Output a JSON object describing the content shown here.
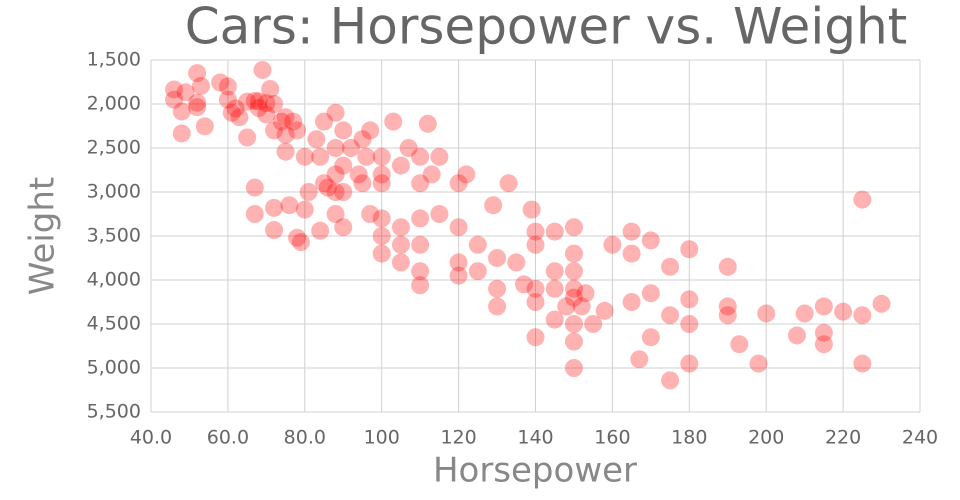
{
  "chart_data": {
    "type": "scatter",
    "title": "Cars: Horsepower vs. Weight",
    "x_label": "Horsepower",
    "y_label": "Weight",
    "color": "#ff0000",
    "opacity": 0.3,
    "grid": true,
    "y_inverted": true,
    "xlim": [
      40,
      240
    ],
    "ylim": [
      1500,
      5500
    ],
    "xticks": [
      {
        "value": 40,
        "label": "40.0"
      },
      {
        "value": 60,
        "label": "60.0"
      },
      {
        "value": 80,
        "label": "80.0"
      },
      100,
      120,
      140,
      160,
      180,
      200,
      220,
      240
    ],
    "yticks": [
      {
        "value": 1500,
        "label": "1,500"
      },
      {
        "value": 2000,
        "label": "2,000"
      },
      {
        "value": 2500,
        "label": "2,500"
      },
      {
        "value": 3000,
        "label": "3,000"
      },
      {
        "value": 3500,
        "label": "3,500"
      },
      {
        "value": 4000,
        "label": "4,000"
      },
      {
        "value": 4500,
        "label": "4,500"
      },
      {
        "value": 5000,
        "label": "5,000"
      },
      {
        "value": 5500,
        "label": "5,500"
      }
    ],
    "x": [
      46,
      46,
      48,
      48,
      49,
      52,
      52,
      52,
      53,
      54,
      58,
      60,
      60,
      61,
      62,
      63,
      65,
      65,
      67,
      67,
      67,
      68,
      68,
      69,
      70,
      70,
      71,
      72,
      72,
      72,
      72,
      74,
      75,
      75,
      75,
      76,
      77,
      78,
      78,
      79,
      80,
      80,
      81,
      83,
      84,
      84,
      85,
      85,
      86,
      88,
      88,
      88,
      88,
      88,
      90,
      90,
      90,
      90,
      92,
      94,
      95,
      95,
      96,
      97,
      97,
      100,
      100,
      100,
      100,
      100,
      100,
      103,
      105,
      105,
      105,
      105,
      107,
      110,
      110,
      110,
      110,
      110,
      110,
      112,
      113,
      115,
      115,
      120,
      120,
      120,
      120,
      122,
      125,
      125,
      129,
      130,
      130,
      130,
      133,
      135,
      137,
      139,
      140,
      140,
      140,
      140,
      140,
      145,
      145,
      145,
      145,
      148,
      150,
      150,
      150,
      150,
      150,
      150,
      150,
      150,
      152,
      153,
      155,
      158,
      160,
      165,
      165,
      165,
      167,
      170,
      170,
      170,
      175,
      175,
      175,
      180,
      180,
      180,
      180,
      190,
      190,
      190,
      193,
      198,
      200,
      208,
      210,
      215,
      215,
      215,
      220,
      225,
      225,
      225,
      230
    ],
    "values": [
      1835,
      1950,
      2335,
      2085,
      1867,
      1649,
      1985,
      2035,
      1795,
      2254,
      1755,
      1800,
      1950,
      2100,
      2050,
      2150,
      1975,
      2380,
      1965,
      2950,
      3250,
      1970,
      2045,
      1613,
      1990,
      2120,
      1830,
      2000,
      2300,
      3180,
      3432,
      2200,
      2350,
      2150,
      2542,
      3150,
      2200,
      2300,
      3520,
      3570,
      2600,
      3200,
      3000,
      2400,
      2600,
      3440,
      2900,
      2200,
      2950,
      2100,
      2500,
      2800,
      3000,
      3250,
      2700,
      3000,
      3400,
      2300,
      2500,
      2800,
      2400,
      2900,
      2600,
      2300,
      3250,
      2600,
      3300,
      3500,
      3700,
      2800,
      2900,
      2200,
      2700,
      3400,
      3600,
      3800,
      2500,
      2600,
      2900,
      3300,
      3600,
      3900,
      4060,
      2225,
      2800,
      2600,
      3250,
      2900,
      3400,
      3800,
      3950,
      2800,
      3900,
      3600,
      3150,
      3750,
      4100,
      4300,
      2900,
      3800,
      4050,
      3200,
      3450,
      3600,
      4100,
      4250,
      4650,
      3450,
      3900,
      4100,
      4450,
      4300,
      3400,
      3700,
      3900,
      4100,
      4200,
      4500,
      4700,
      5000,
      4300,
      4150,
      4500,
      4350,
      3600,
      3450,
      3700,
      4250,
      4900,
      3550,
      4150,
      4650,
      3850,
      4400,
      5140,
      3650,
      4220,
      4500,
      4950,
      3850,
      4300,
      4400,
      4730,
      4950,
      4380,
      4630,
      4380,
      4300,
      4730,
      4600,
      4360,
      3086,
      4400,
      4950,
      4270
    ]
  }
}
